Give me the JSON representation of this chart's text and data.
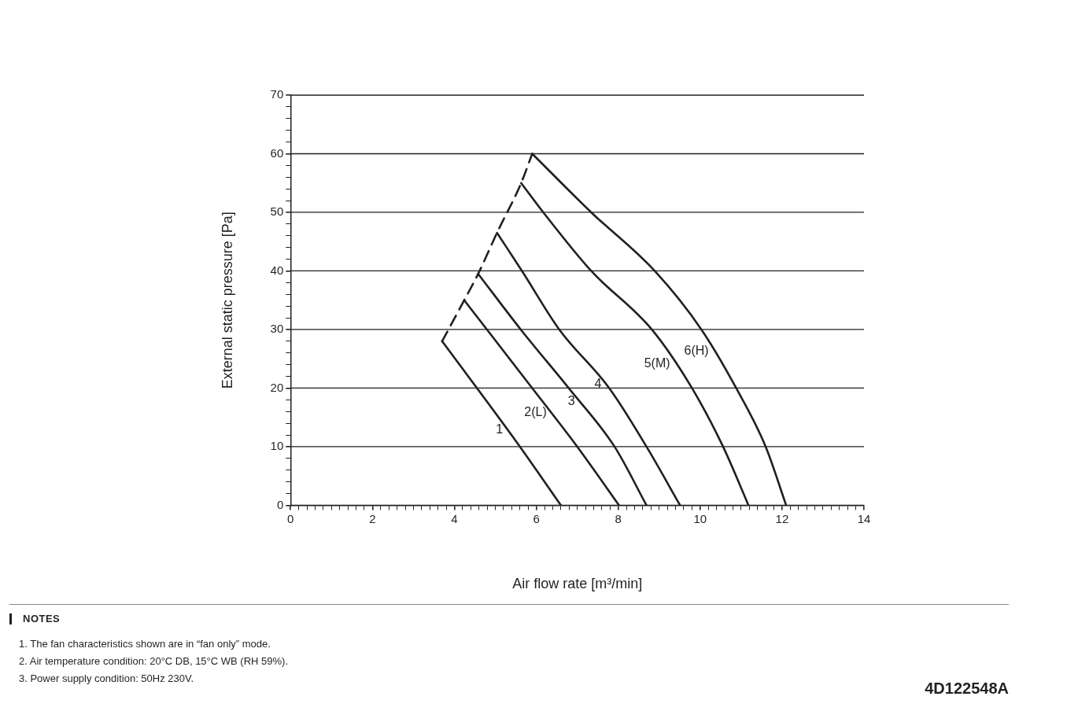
{
  "chart_data": {
    "type": "line",
    "xlabel": "Air flow rate [m³/min]",
    "ylabel": "External static pressure [Pa]",
    "xlim": [
      0,
      14
    ],
    "ylim": [
      0,
      70
    ],
    "xticks": [
      0,
      {
        "value": 0.2,
        "label": null
      },
      {
        "value": 0.4,
        "label": null
      },
      {
        "value": 0.6,
        "label": null
      },
      {
        "value": 0.8,
        "label": null
      },
      {
        "value": 1,
        "label": null
      },
      {
        "value": 1.2,
        "label": null
      },
      {
        "value": 1.4,
        "label": null
      },
      {
        "value": 1.6,
        "label": null
      },
      {
        "value": 1.8,
        "label": null
      },
      2,
      {
        "value": 2.2,
        "label": null
      },
      {
        "value": 2.4,
        "label": null
      },
      {
        "value": 2.6,
        "label": null
      },
      {
        "value": 2.8,
        "label": null
      },
      {
        "value": 3,
        "label": null
      },
      {
        "value": 3.2,
        "label": null
      },
      {
        "value": 3.4,
        "label": null
      },
      {
        "value": 3.6,
        "label": null
      },
      {
        "value": 3.8,
        "label": null
      },
      4,
      {
        "value": 4.2,
        "label": null
      },
      {
        "value": 4.4,
        "label": null
      },
      {
        "value": 4.6,
        "label": null
      },
      {
        "value": 4.8,
        "label": null
      },
      {
        "value": 5,
        "label": null
      },
      {
        "value": 5.2,
        "label": null
      },
      {
        "value": 5.4,
        "label": null
      },
      {
        "value": 5.6,
        "label": null
      },
      {
        "value": 5.8,
        "label": null
      },
      6,
      {
        "value": 6.2,
        "label": null
      },
      {
        "value": 6.4,
        "label": null
      },
      {
        "value": 6.6,
        "label": null
      },
      {
        "value": 6.8,
        "label": null
      },
      {
        "value": 7,
        "label": null
      },
      {
        "value": 7.2,
        "label": null
      },
      {
        "value": 7.4,
        "label": null
      },
      {
        "value": 7.6,
        "label": null
      },
      {
        "value": 7.8,
        "label": null
      },
      8,
      {
        "value": 8.2,
        "label": null
      },
      {
        "value": 8.4,
        "label": null
      },
      {
        "value": 8.6,
        "label": null
      },
      {
        "value": 8.8,
        "label": null
      },
      {
        "value": 9,
        "label": null
      },
      {
        "value": 9.2,
        "label": null
      },
      {
        "value": 9.4,
        "label": null
      },
      {
        "value": 9.6,
        "label": null
      },
      {
        "value": 9.8,
        "label": null
      },
      10,
      {
        "value": 10.2,
        "label": null
      },
      {
        "value": 10.4,
        "label": null
      },
      {
        "value": 10.6,
        "label": null
      },
      {
        "value": 10.8,
        "label": null
      },
      {
        "value": 11,
        "label": null
      },
      {
        "value": 11.2,
        "label": null
      },
      {
        "value": 11.4,
        "label": null
      },
      {
        "value": 11.6,
        "label": null
      },
      {
        "value": 11.8,
        "label": null
      },
      12,
      {
        "value": 12.2,
        "label": null
      },
      {
        "value": 12.4,
        "label": null
      },
      {
        "value": 12.6,
        "label": null
      },
      {
        "value": 12.8,
        "label": null
      },
      {
        "value": 13,
        "label": null
      },
      {
        "value": 13.2,
        "label": null
      },
      {
        "value": 13.4,
        "label": null
      },
      {
        "value": 13.6,
        "label": null
      },
      {
        "value": 13.8,
        "label": null
      },
      14
    ],
    "yticks": [
      0,
      {
        "value": 2,
        "label": null
      },
      {
        "value": 4,
        "label": null
      },
      {
        "value": 6,
        "label": null
      },
      {
        "value": 8,
        "label": null
      },
      10,
      {
        "value": 12,
        "label": null
      },
      {
        "value": 14,
        "label": null
      },
      {
        "value": 16,
        "label": null
      },
      {
        "value": 18,
        "label": null
      },
      20,
      {
        "value": 22,
        "label": null
      },
      {
        "value": 24,
        "label": null
      },
      {
        "value": 26,
        "label": null
      },
      {
        "value": 28,
        "label": null
      },
      30,
      {
        "value": 32,
        "label": null
      },
      {
        "value": 34,
        "label": null
      },
      {
        "value": 36,
        "label": null
      },
      {
        "value": 38,
        "label": null
      },
      40,
      {
        "value": 42,
        "label": null
      },
      {
        "value": 44,
        "label": null
      },
      {
        "value": 46,
        "label": null
      },
      {
        "value": 48,
        "label": null
      },
      50,
      {
        "value": 52,
        "label": null
      },
      {
        "value": 54,
        "label": null
      },
      {
        "value": 56,
        "label": null
      },
      {
        "value": 58,
        "label": null
      },
      60,
      {
        "value": 62,
        "label": null
      },
      {
        "value": 64,
        "label": null
      },
      {
        "value": 66,
        "label": null
      },
      {
        "value": 68,
        "label": null
      },
      70
    ],
    "grid": "y",
    "legend": false,
    "marker": "none",
    "series": [
      {
        "name": "1",
        "color": "#231f20",
        "x": [
          3.7,
          5.6,
          6.6
        ],
        "values": [
          28,
          10,
          0
        ]
      },
      {
        "name": "2(L)",
        "color": "#231f20",
        "x": [
          4.24,
          5.9,
          7.0,
          8.02
        ],
        "values": [
          35,
          20,
          10,
          0
        ]
      },
      {
        "name": "3",
        "color": "#231f20",
        "x": [
          4.58,
          5.62,
          6.79,
          7.91,
          8.69
        ],
        "values": [
          39.5,
          30,
          20,
          10,
          0
        ]
      },
      {
        "name": "4",
        "color": "#231f20",
        "x": [
          5.04,
          5.65,
          6.56,
          7.78,
          8.69,
          9.51
        ],
        "values": [
          46.5,
          40,
          30,
          20,
          10,
          0
        ]
      },
      {
        "name": "5(M)",
        "color": "#231f20",
        "x": [
          5.63,
          6.17,
          7.34,
          8.82,
          9.8,
          10.56,
          11.18
        ],
        "values": [
          55,
          50,
          40,
          30,
          20,
          10,
          0
        ]
      },
      {
        "name": "6(H)",
        "color": "#231f20",
        "x": [
          5.9,
          7.34,
          8.89,
          10.03,
          10.88,
          11.6,
          12.1
        ],
        "values": [
          60,
          50,
          40,
          30,
          20,
          10,
          0
        ]
      },
      {
        "color": "#231f20",
        "line_style": "dashed",
        "x": [
          3.7,
          4.24,
          4.58,
          5.04,
          5.63,
          5.9
        ],
        "values": [
          28,
          35,
          39.5,
          46.5,
          55,
          60
        ]
      }
    ],
    "annotations": [
      "NOTES",
      "1. The fan characteristics shown are in “fan only” mode.",
      "2. Air temperature condition: 20°C DB, 15°C WB (RH 59%).",
      "3. Power supply condition: 50Hz 230V.",
      "4D122548A"
    ]
  }
}
